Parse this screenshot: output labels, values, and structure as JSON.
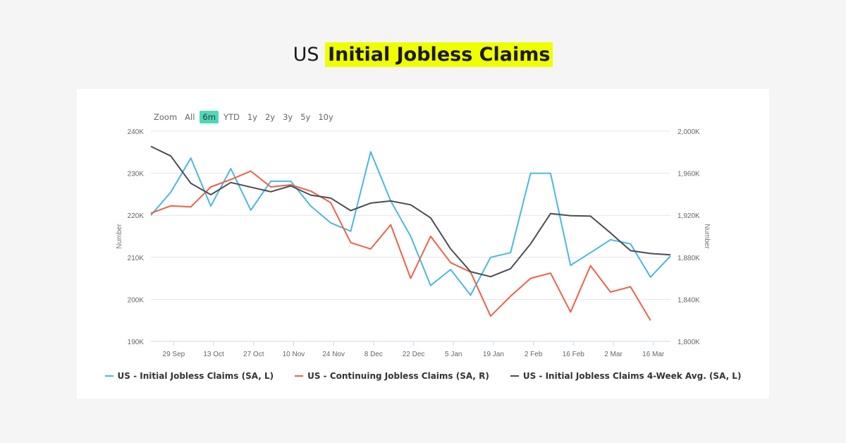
{
  "title": {
    "prefix": "US",
    "highlight": "Initial Jobless Claims"
  },
  "zoom": {
    "label": "Zoom",
    "options": [
      "All",
      "6m",
      "YTD",
      "1y",
      "2y",
      "3y",
      "5y",
      "10y"
    ],
    "active": "6m"
  },
  "chart_data": {
    "type": "line",
    "x": [
      "2024-09-21",
      "2024-09-28",
      "2024-10-05",
      "2024-10-12",
      "2024-10-19",
      "2024-10-26",
      "2024-11-02",
      "2024-11-09",
      "2024-11-16",
      "2024-11-23",
      "2024-11-30",
      "2024-12-07",
      "2024-12-14",
      "2024-12-21",
      "2024-12-28",
      "2025-01-04",
      "2025-01-11",
      "2025-01-18",
      "2025-01-25",
      "2025-02-01",
      "2025-02-08",
      "2025-02-15",
      "2025-02-22",
      "2025-03-01",
      "2025-03-08",
      "2025-03-15",
      "2025-03-22"
    ],
    "xlim": [
      "2024-09-21",
      "2025-03-22"
    ],
    "xticks": [
      {
        "date": "2024-09-29",
        "label": "29 Sep"
      },
      {
        "date": "2024-10-13",
        "label": "13 Oct"
      },
      {
        "date": "2024-10-27",
        "label": "27 Oct"
      },
      {
        "date": "2024-11-10",
        "label": "10 Nov"
      },
      {
        "date": "2024-11-24",
        "label": "24 Nov"
      },
      {
        "date": "2024-12-08",
        "label": "8 Dec"
      },
      {
        "date": "2024-12-22",
        "label": "22 Dec"
      },
      {
        "date": "2025-01-05",
        "label": "5 Jan"
      },
      {
        "date": "2025-01-19",
        "label": "19 Jan"
      },
      {
        "date": "2025-02-02",
        "label": "2 Feb"
      },
      {
        "date": "2025-02-16",
        "label": "16 Feb"
      },
      {
        "date": "2025-03-02",
        "label": "2 Mar"
      },
      {
        "date": "2025-03-16",
        "label": "16 Mar"
      }
    ],
    "y_left": {
      "label": "Number",
      "lim": [
        190,
        240
      ],
      "ticks": [
        190,
        200,
        210,
        220,
        230,
        240
      ],
      "tick_labels": [
        "190K",
        "200K",
        "210K",
        "220K",
        "230K",
        "240K"
      ]
    },
    "y_right": {
      "label": "Number",
      "lim": [
        1800,
        2000
      ],
      "ticks": [
        1800,
        1840,
        1880,
        1920,
        1960,
        2000
      ],
      "tick_labels": [
        "1,800K",
        "1,840K",
        "1,880K",
        "1,920K",
        "1,960K",
        "2,000K"
      ]
    },
    "grid": true,
    "legend_position": "bottom",
    "series": [
      {
        "name": "US - Initial Jobless Claims (SA, L)",
        "axis": "left",
        "color": "#4bb8e0",
        "values": [
          220.0,
          225.5,
          233.6,
          222.2,
          231.1,
          221.2,
          228.1,
          228.1,
          222.2,
          218.2,
          216.2,
          235.1,
          223.4,
          215.0,
          203.3,
          207.1,
          201.0,
          210.0,
          211.1,
          230.0,
          230.0,
          208.1,
          211.1,
          214.2,
          213.2,
          205.3,
          210.3
        ]
      },
      {
        "name": "US - Continuing Jobless Claims (SA, R)",
        "axis": "right",
        "color": "#f0604a",
        "values": [
          1922,
          1929,
          1928,
          1947,
          1954,
          1962,
          1947,
          1949,
          1943,
          1932,
          1894,
          1888,
          1911,
          1860,
          1900,
          1875,
          1866,
          1824,
          1843,
          1860,
          1865,
          1828,
          1872,
          1847,
          1852,
          1820,
          null
        ]
      },
      {
        "name": "US - Initial Jobless Claims 4-Week Avg. (SA, L)",
        "axis": "left",
        "color": "#4a4d57",
        "values": [
          236.4,
          234.1,
          227.6,
          224.9,
          227.8,
          226.7,
          225.6,
          227.0,
          224.8,
          224.1,
          221.1,
          222.9,
          223.4,
          222.5,
          219.4,
          212.0,
          206.6,
          205.4,
          207.3,
          213.2,
          220.4,
          219.9,
          219.8,
          215.8,
          211.6,
          210.9,
          210.6
        ]
      }
    ]
  }
}
